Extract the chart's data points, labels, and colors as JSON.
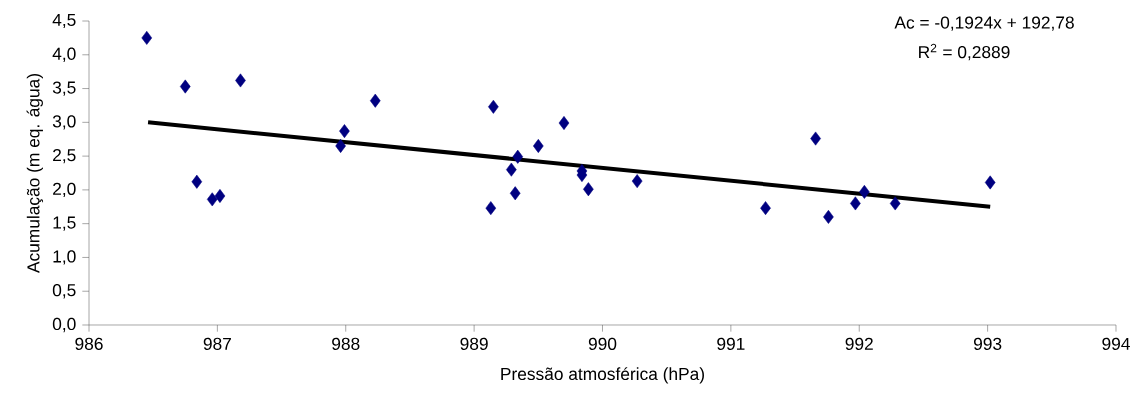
{
  "chart_data": {
    "type": "scatter",
    "xlabel": "Pressão atmosférica (hPa)",
    "ylabel": "Acumulação (m eq. água)",
    "xlim": [
      986,
      994
    ],
    "xticks": [
      986,
      987,
      988,
      989,
      990,
      991,
      992,
      993,
      994
    ],
    "ylim": [
      0,
      4.5
    ],
    "yticks": [
      {
        "value": 0,
        "label": "0,0"
      },
      {
        "value": 0.5,
        "label": "0,5"
      },
      {
        "value": 1,
        "label": "1,0"
      },
      {
        "value": 1.5,
        "label": "1,5"
      },
      {
        "value": 2,
        "label": "2,0"
      },
      {
        "value": 2.5,
        "label": "2,5"
      },
      {
        "value": 3,
        "label": "3,0"
      },
      {
        "value": 3.5,
        "label": "3,5"
      },
      {
        "value": 4,
        "label": "4,0"
      },
      {
        "value": 4.5,
        "label": "4,5"
      }
    ],
    "grid": false,
    "series": [
      {
        "marker": "diamond",
        "color": "#000080",
        "x": [
          986.45,
          986.75,
          986.84,
          986.96,
          987.02,
          987.18,
          987.96,
          987.99,
          988.23,
          989.13,
          989.15,
          989.29,
          989.32,
          989.34,
          989.5,
          989.7,
          989.84,
          989.84,
          989.89,
          990.27,
          991.27,
          991.66,
          991.76,
          991.97,
          992.04,
          992.28,
          993.02
        ],
        "values": [
          4.25,
          3.53,
          2.12,
          1.86,
          1.91,
          3.62,
          2.65,
          2.87,
          3.32,
          1.73,
          3.23,
          2.3,
          1.95,
          2.49,
          2.65,
          2.99,
          2.28,
          2.22,
          2.01,
          2.13,
          1.73,
          2.76,
          1.6,
          1.8,
          1.97,
          1.8,
          2.11
        ]
      },
      {
        "type": "line",
        "marker": "none",
        "color": "#000000",
        "x": [
          986.46,
          993.02
        ],
        "values": [
          3.0,
          1.75
        ]
      }
    ],
    "annotations": [
      "Ac = -0,1924x + 192,78",
      "R$^{2}$ = 0,2889"
    ]
  }
}
